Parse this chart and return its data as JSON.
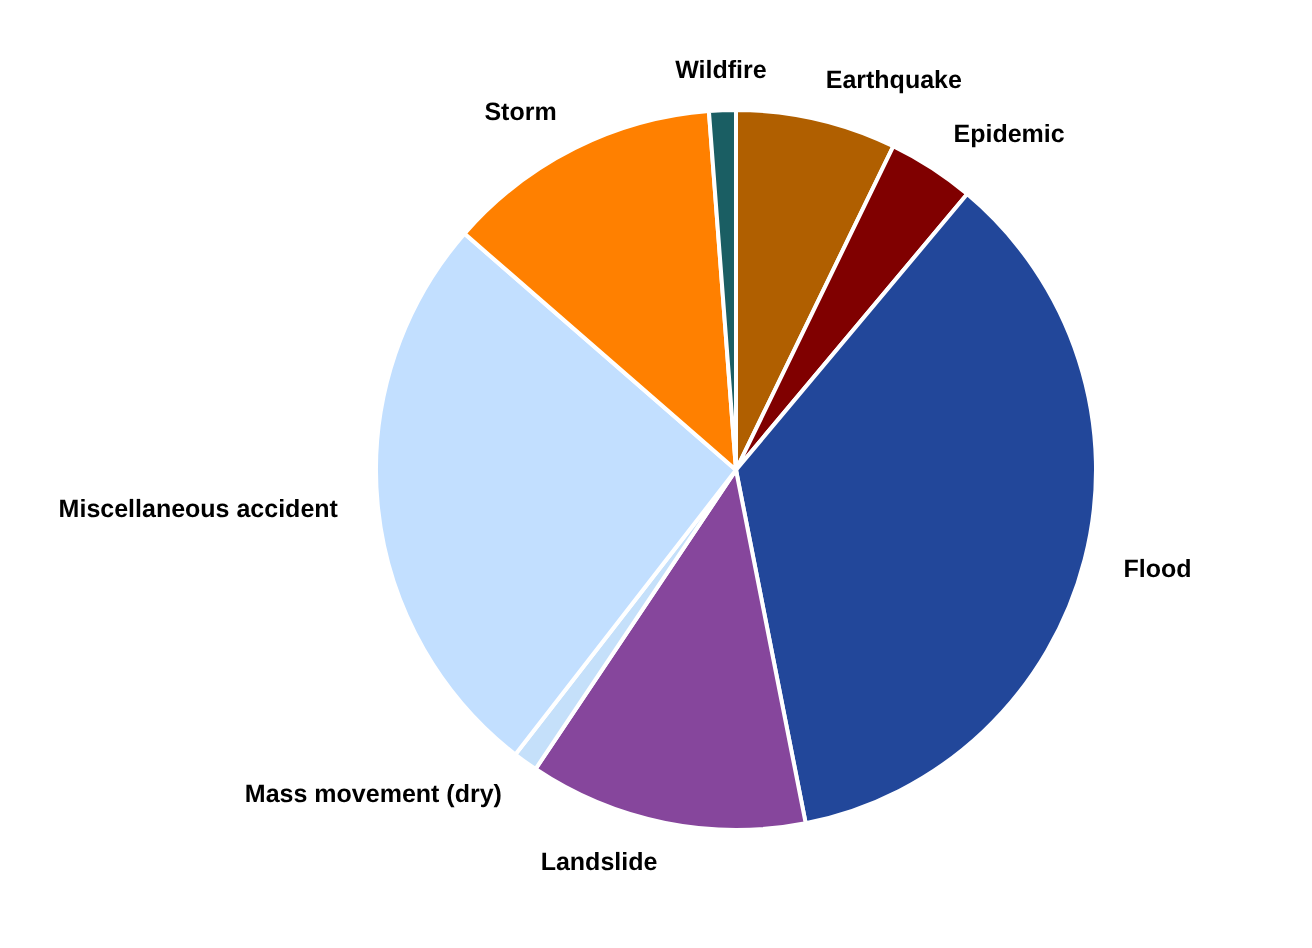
{
  "chart_data": {
    "type": "pie",
    "categories": [
      "Earthquake",
      "Epidemic",
      "Flood",
      "Landslide",
      "Mass movement (dry)",
      "Miscellaneous accident",
      "Storm",
      "Wildfire"
    ],
    "values": [
      7.2,
      3.9,
      35.8,
      12.5,
      1.1,
      25.9,
      12.4,
      1.2
    ],
    "colors": [
      "#b05f00",
      "#800000",
      "#22479a",
      "#86469c",
      "#c5e0fa",
      "#c2dfff",
      "#ff8000",
      "#1a5e63"
    ]
  }
}
